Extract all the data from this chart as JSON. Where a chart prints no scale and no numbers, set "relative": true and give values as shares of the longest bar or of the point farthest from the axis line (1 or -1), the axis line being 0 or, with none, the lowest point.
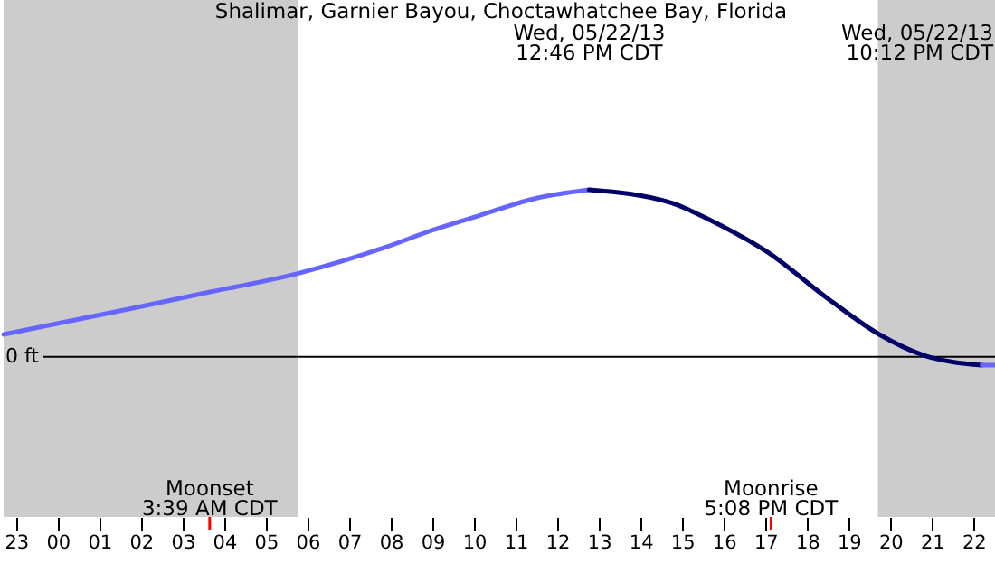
{
  "chart_data": {
    "type": "line",
    "title": "Shalimar, Garnier Bayou, Choctawhatchee Bay, Florida",
    "relative": true,
    "xlim": [
      "--05-21T22:42",
      "--05-22T22:36"
    ],
    "xticks": [
      {
        "value": "--05-21T23:00",
        "label": "23"
      },
      {
        "value": "--05-22T00:00",
        "label": "00"
      },
      {
        "value": "--05-22T01:00",
        "label": "01"
      },
      {
        "value": "--05-22T02:00",
        "label": "02"
      },
      {
        "value": "--05-22T03:00",
        "label": "03"
      },
      {
        "value": "--05-22T04:00",
        "label": "04"
      },
      {
        "value": "--05-22T05:00",
        "label": "05"
      },
      {
        "value": "--05-22T06:00",
        "label": "06"
      },
      {
        "value": "--05-22T07:00",
        "label": "07"
      },
      {
        "value": "--05-22T08:00",
        "label": "08"
      },
      {
        "value": "--05-22T09:00",
        "label": "09"
      },
      {
        "value": "--05-22T10:00",
        "label": "10"
      },
      {
        "value": "--05-22T11:00",
        "label": "11"
      },
      {
        "value": "--05-22T12:00",
        "label": "12"
      },
      {
        "value": "--05-22T13:00",
        "label": "13"
      },
      {
        "value": "--05-22T14:00",
        "label": "14"
      },
      {
        "value": "--05-22T15:00",
        "label": "15"
      },
      {
        "value": "--05-22T16:00",
        "label": "16"
      },
      {
        "value": "--05-22T17:00",
        "label": "17"
      },
      {
        "value": "--05-22T18:00",
        "label": "18"
      },
      {
        "value": "--05-22T19:00",
        "label": "19"
      },
      {
        "value": "--05-22T20:00",
        "label": "20"
      },
      {
        "value": "--05-22T21:00",
        "label": "21"
      },
      {
        "value": "--05-22T22:00",
        "label": "22"
      }
    ],
    "series": [
      {
        "color": "#6666ff",
        "x": [
          "--05-21T22:42",
          "--05-22T01:45",
          "--05-22T03:30",
          "--05-22T05:47",
          "--05-22T07:51",
          "--05-22T09:00",
          "--05-22T10:08",
          "--05-22T11:30",
          "--05-22T12:46"
        ],
        "values": [
          0.134,
          0.288,
          0.38,
          0.5,
          0.654,
          0.758,
          0.846,
          0.95,
          1
        ]
      },
      {
        "color": "#000066",
        "x": [
          "--05-22T12:46",
          "--05-22T14:43",
          "--05-22T16:00",
          "--05-22T17:00",
          "--05-22T18:31",
          "--05-22T19:44",
          "--05-22T20:49",
          "--05-22T21:30",
          "--05-22T22:12"
        ],
        "values": [
          1,
          0.923,
          0.777,
          0.635,
          0.345,
          0.134,
          0.008,
          -0.031,
          -0.05
        ]
      },
      {
        "color": "#6666ff",
        "x": [
          "--05-22T22:12",
          "--05-22T22:36"
        ],
        "values": [
          -0.05,
          -0.05
        ]
      }
    ],
    "bands": [
      {
        "axis": "x",
        "from": "--05-21T22:42",
        "to": "--05-22T05:47",
        "color": "#cccccc"
      },
      {
        "axis": "x",
        "from": "--05-22T19:42",
        "to": "--05-22T22:36",
        "color": "#cccccc"
      }
    ],
    "ref_lines": [
      {
        "axis": "y",
        "value": 0,
        "label": "0 ft",
        "color": "#000000"
      },
      {
        "axis": "x",
        "value": "--05-22T03:39",
        "label": "Moonset\n3:39 AM CDT",
        "color": "#ff0000"
      },
      {
        "axis": "x",
        "value": "--05-22T17:08",
        "label": "Moonrise\n5:08 PM CDT",
        "color": "#ff0000"
      }
    ],
    "annotations": [
      "Wed, 05/22/13\n12:46 PM CDT",
      "Wed, 05/22/13\n10:12 PM CDT"
    ],
    "grid": false,
    "legend": false,
    "line_style": "solid",
    "marker": "none"
  }
}
